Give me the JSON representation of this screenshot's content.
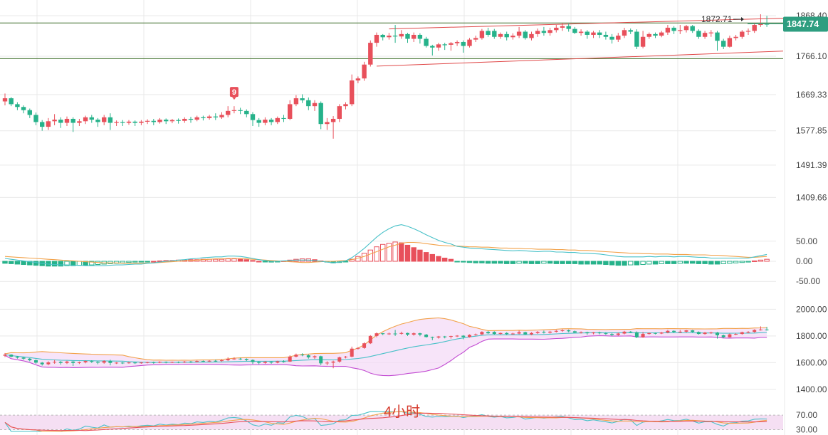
{
  "theme": {
    "up_color": "#e8505b",
    "down_color": "#26b28a",
    "grid_color": "#e9e9e9",
    "hline_color": "#3f6f2a",
    "channel_color": "#e04848",
    "price_tag_color": "#2e9e80",
    "sma_fast_color": "#f2a24a",
    "sma_slow_color": "#48c1c8",
    "bb_upper_color": "#f2a24a",
    "bb_lower_color": "#c24bd2",
    "bb_mid_color": "#48c1c8",
    "bb_fill_color": "#f3d9f7",
    "rsi_band_color": "#f5dff3"
  },
  "chart_data": [
    {
      "type": "candlestick",
      "name": "price",
      "ylim": [
        1360,
        1890
      ],
      "y_ticks": [
        "1868.40",
        "1766.10",
        "1669.33",
        "1577.85",
        "1491.39",
        "1409.66"
      ],
      "last_price": "1847.74",
      "high_marker": "1872.71",
      "horizontal_lines": [
        1850,
        1760
      ],
      "channel": {
        "upper": [
          {
            "x": 62,
            "y": 1835
          },
          {
            "x": 131,
            "y": 1862
          }
        ],
        "lower": [
          {
            "x": 60,
            "y": 1741
          },
          {
            "x": 137,
            "y": 1779
          }
        ]
      },
      "badge": {
        "index": 37,
        "text": "9"
      },
      "candles": [
        [
          1652,
          1660,
          1642,
          1672
        ],
        [
          1660,
          1645,
          1640,
          1663
        ],
        [
          1645,
          1638,
          1630,
          1650
        ],
        [
          1638,
          1630,
          1622,
          1642
        ],
        [
          1630,
          1618,
          1610,
          1634
        ],
        [
          1618,
          1600,
          1592,
          1624
        ],
        [
          1600,
          1588,
          1578,
          1605
        ],
        [
          1588,
          1602,
          1580,
          1610
        ],
        [
          1602,
          1606,
          1592,
          1620
        ],
        [
          1606,
          1598,
          1585,
          1612
        ],
        [
          1598,
          1608,
          1590,
          1614
        ],
        [
          1608,
          1598,
          1575,
          1612
        ],
        [
          1598,
          1602,
          1590,
          1608
        ],
        [
          1602,
          1612,
          1595,
          1616
        ],
        [
          1612,
          1606,
          1598,
          1618
        ],
        [
          1606,
          1600,
          1588,
          1610
        ],
        [
          1600,
          1612,
          1592,
          1618
        ],
        [
          1612,
          1598,
          1580,
          1622
        ],
        [
          1598,
          1600,
          1590,
          1604
        ],
        [
          1600,
          1598,
          1590,
          1605
        ],
        [
          1598,
          1601,
          1593,
          1605
        ],
        [
          1601,
          1598,
          1590,
          1604
        ],
        [
          1598,
          1601,
          1592,
          1605
        ],
        [
          1601,
          1603,
          1595,
          1607
        ],
        [
          1603,
          1600,
          1592,
          1608
        ],
        [
          1600,
          1606,
          1596,
          1610
        ],
        [
          1606,
          1602,
          1595,
          1609
        ],
        [
          1602,
          1605,
          1597,
          1608
        ],
        [
          1605,
          1603,
          1596,
          1609
        ],
        [
          1603,
          1608,
          1598,
          1612
        ],
        [
          1608,
          1606,
          1598,
          1613
        ],
        [
          1606,
          1612,
          1602,
          1616
        ],
        [
          1612,
          1610,
          1604,
          1616
        ],
        [
          1610,
          1614,
          1606,
          1618
        ],
        [
          1614,
          1612,
          1605,
          1622
        ],
        [
          1612,
          1618,
          1608,
          1625
        ],
        [
          1618,
          1628,
          1612,
          1640
        ],
        [
          1628,
          1630,
          1622,
          1640
        ],
        [
          1630,
          1628,
          1620,
          1636
        ],
        [
          1628,
          1620,
          1612,
          1632
        ],
        [
          1620,
          1605,
          1590,
          1625
        ],
        [
          1605,
          1598,
          1588,
          1610
        ],
        [
          1598,
          1606,
          1592,
          1612
        ],
        [
          1606,
          1600,
          1592,
          1610
        ],
        [
          1600,
          1610,
          1595,
          1614
        ],
        [
          1610,
          1608,
          1600,
          1618
        ],
        [
          1608,
          1645,
          1605,
          1655
        ],
        [
          1645,
          1660,
          1640,
          1668
        ],
        [
          1660,
          1655,
          1648,
          1670
        ],
        [
          1655,
          1640,
          1630,
          1662
        ],
        [
          1640,
          1648,
          1628,
          1655
        ],
        [
          1648,
          1595,
          1582,
          1652
        ],
        [
          1595,
          1600,
          1580,
          1610
        ],
        [
          1600,
          1608,
          1558,
          1615
        ],
        [
          1608,
          1640,
          1600,
          1645
        ],
        [
          1640,
          1645,
          1632,
          1650
        ],
        [
          1645,
          1705,
          1640,
          1720
        ],
        [
          1705,
          1710,
          1698,
          1715
        ],
        [
          1710,
          1745,
          1704,
          1752
        ],
        [
          1745,
          1800,
          1740,
          1806
        ],
        [
          1800,
          1820,
          1790,
          1826
        ],
        [
          1820,
          1814,
          1806,
          1822
        ],
        [
          1814,
          1818,
          1808,
          1825
        ],
        [
          1818,
          1816,
          1800,
          1845
        ],
        [
          1816,
          1822,
          1810,
          1832
        ],
        [
          1822,
          1810,
          1800,
          1825
        ],
        [
          1810,
          1820,
          1802,
          1826
        ],
        [
          1820,
          1810,
          1798,
          1824
        ],
        [
          1810,
          1792,
          1788,
          1815
        ],
        [
          1792,
          1788,
          1768,
          1795
        ],
        [
          1788,
          1796,
          1780,
          1800
        ],
        [
          1796,
          1795,
          1782,
          1800
        ],
        [
          1795,
          1799,
          1780,
          1802
        ],
        [
          1799,
          1802,
          1792,
          1806
        ],
        [
          1802,
          1792,
          1775,
          1806
        ],
        [
          1792,
          1808,
          1788,
          1812
        ],
        [
          1808,
          1812,
          1802,
          1818
        ],
        [
          1812,
          1830,
          1808,
          1835
        ],
        [
          1830,
          1820,
          1815,
          1838
        ],
        [
          1830,
          1815,
          1810,
          1835
        ],
        [
          1815,
          1822,
          1810,
          1826
        ],
        [
          1822,
          1814,
          1806,
          1828
        ],
        [
          1814,
          1818,
          1808,
          1824
        ],
        [
          1818,
          1828,
          1812,
          1840
        ],
        [
          1828,
          1812,
          1808,
          1832
        ],
        [
          1812,
          1822,
          1806,
          1828
        ],
        [
          1822,
          1830,
          1815,
          1836
        ],
        [
          1830,
          1825,
          1818,
          1840
        ],
        [
          1825,
          1832,
          1818,
          1838
        ],
        [
          1832,
          1838,
          1826,
          1845
        ],
        [
          1838,
          1842,
          1830,
          1850
        ],
        [
          1842,
          1835,
          1828,
          1848
        ],
        [
          1835,
          1825,
          1822,
          1840
        ],
        [
          1825,
          1828,
          1818,
          1834
        ],
        [
          1828,
          1820,
          1810,
          1832
        ],
        [
          1820,
          1826,
          1812,
          1830
        ],
        [
          1826,
          1820,
          1812,
          1832
        ],
        [
          1820,
          1815,
          1808,
          1828
        ],
        [
          1815,
          1808,
          1798,
          1822
        ],
        [
          1808,
          1818,
          1802,
          1825
        ],
        [
          1818,
          1832,
          1812,
          1838
        ],
        [
          1832,
          1828,
          1822,
          1836
        ],
        [
          1828,
          1790,
          1784,
          1834
        ],
        [
          1790,
          1815,
          1786,
          1830
        ],
        [
          1815,
          1822,
          1810,
          1826
        ],
        [
          1822,
          1818,
          1812,
          1826
        ],
        [
          1818,
          1826,
          1814,
          1830
        ],
        [
          1826,
          1838,
          1820,
          1845
        ],
        [
          1838,
          1830,
          1822,
          1842
        ],
        [
          1830,
          1832,
          1822,
          1845
        ],
        [
          1832,
          1842,
          1826,
          1845
        ],
        [
          1842,
          1830,
          1825,
          1845
        ],
        [
          1830,
          1815,
          1810,
          1834
        ],
        [
          1815,
          1825,
          1810,
          1830
        ],
        [
          1825,
          1826,
          1815,
          1832
        ],
        [
          1826,
          1805,
          1780,
          1830
        ],
        [
          1805,
          1790,
          1784,
          1810
        ],
        [
          1790,
          1812,
          1788,
          1818
        ],
        [
          1812,
          1815,
          1806,
          1820
        ],
        [
          1815,
          1828,
          1810,
          1832
        ],
        [
          1828,
          1830,
          1820,
          1836
        ],
        [
          1830,
          1845,
          1825,
          1850
        ],
        [
          1845,
          1848,
          1840,
          1872
        ],
        [
          1848,
          1847.74,
          1840,
          1868
        ]
      ]
    },
    {
      "type": "bar",
      "name": "macd",
      "ylim": [
        -62,
        62
      ],
      "y_ticks": [
        "50.00",
        "0.00",
        "-50.00"
      ],
      "histogram": [
        -5,
        -6,
        -7,
        -8,
        -9,
        -10,
        -11,
        -12,
        -12,
        -12,
        -11,
        -11,
        -10,
        -10,
        -9,
        -8,
        -7,
        -6,
        -5,
        -4,
        -3,
        -2,
        -2,
        -1,
        0,
        1,
        2,
        2,
        3,
        3,
        4,
        4,
        5,
        5,
        5,
        5,
        6,
        6,
        5,
        4,
        2,
        0,
        -1,
        -2,
        -1,
        1,
        3,
        5,
        6,
        6,
        4,
        1,
        -2,
        -4,
        -3,
        -1,
        5,
        12,
        20,
        28,
        36,
        42,
        45,
        48,
        46,
        40,
        34,
        28,
        22,
        17,
        12,
        8,
        5,
        -1,
        -2,
        -3,
        -4,
        -4,
        -5,
        -5,
        -5,
        -6,
        -6,
        -5,
        -5,
        -6,
        -6,
        -5,
        -5,
        -6,
        -6,
        -6,
        -6,
        -7,
        -7,
        -7,
        -7,
        -8,
        -9,
        -10,
        -10,
        -9,
        -9,
        -8,
        -7,
        -7,
        -6,
        -6,
        -6,
        -5,
        -5,
        -5,
        -6,
        -6,
        -7,
        -7,
        -6,
        -5,
        -4,
        -3,
        -2,
        1,
        3,
        5
      ],
      "signal_line": [
        12,
        11,
        10,
        9,
        8,
        7,
        6,
        5,
        4,
        3,
        2,
        1,
        0,
        -1,
        -2,
        -3,
        -4,
        -4,
        -4,
        -5,
        -5,
        -5,
        -5,
        -4,
        -4,
        -3,
        -2,
        -1,
        0,
        1,
        2,
        3,
        4,
        5,
        6,
        6,
        7,
        7,
        7,
        6,
        5,
        4,
        3,
        2,
        1,
        0,
        -1,
        -2,
        -3,
        -3,
        -2,
        -1,
        0,
        0,
        1,
        2,
        4,
        8,
        12,
        18,
        24,
        30,
        36,
        40,
        45,
        47,
        47,
        46,
        44,
        42,
        40,
        39,
        38,
        38,
        37,
        36,
        36,
        35,
        35,
        34,
        33,
        33,
        32,
        32,
        31,
        31,
        30,
        30,
        30,
        29,
        29,
        28,
        28,
        27,
        27,
        26,
        25,
        24,
        23,
        22,
        21,
        20,
        20,
        19,
        19,
        18,
        18,
        18,
        17,
        17,
        17,
        16,
        16,
        16,
        15,
        15,
        14,
        13,
        12,
        11,
        10,
        10,
        11,
        12
      ],
      "macd_line": [
        7,
        5,
        3,
        1,
        -1,
        -3,
        -5,
        -7,
        -8,
        -9,
        -9,
        -10,
        -10,
        -11,
        -11,
        -11,
        -11,
        -10,
        -9,
        -9,
        -8,
        -7,
        -7,
        -5,
        -4,
        -2,
        0,
        1,
        3,
        4,
        6,
        7,
        9,
        10,
        11,
        11,
        13,
        13,
        12,
        10,
        7,
        4,
        2,
        0,
        0,
        1,
        2,
        3,
        3,
        3,
        2,
        0,
        -2,
        -4,
        -2,
        1,
        9,
        20,
        32,
        46,
        60,
        72,
        81,
        88,
        91,
        87,
        81,
        74,
        66,
        59,
        52,
        47,
        43,
        37,
        35,
        33,
        32,
        31,
        30,
        29,
        28,
        27,
        26,
        27,
        26,
        25,
        24,
        25,
        25,
        23,
        23,
        22,
        22,
        20,
        20,
        19,
        18,
        16,
        14,
        12,
        11,
        11,
        11,
        11,
        12,
        11,
        12,
        12,
        11,
        12,
        12,
        11,
        10,
        10,
        8,
        8,
        8,
        8,
        8,
        8,
        8,
        11,
        14,
        17
      ]
    },
    {
      "type": "line",
      "name": "bollinger",
      "ylim": [
        1330,
        2050
      ],
      "y_ticks": [
        "2000.00",
        "1800.00",
        "1600.00",
        "1400.00"
      ]
    },
    {
      "type": "line",
      "name": "rsi",
      "ylim": [
        25,
        80
      ],
      "y_ticks": [
        "70.00",
        "30.00"
      ],
      "band": [
        30,
        70
      ],
      "label": "4小时"
    }
  ]
}
